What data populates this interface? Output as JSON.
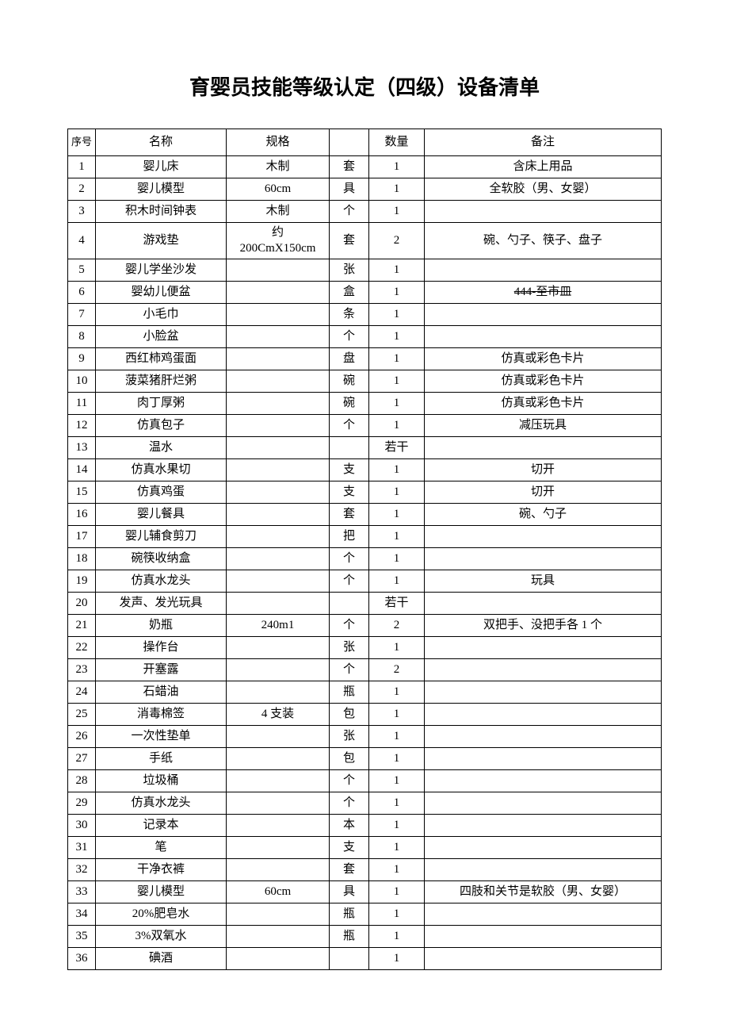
{
  "title": "育婴员技能等级认定（四级）设备清单",
  "headers": {
    "seq": "序号",
    "name": "名称",
    "spec": "规格",
    "unit": "",
    "qty": "数量",
    "remark": "备注"
  },
  "rows": [
    {
      "seq": "1",
      "name": "婴儿床",
      "spec": "木制",
      "unit": "套",
      "qty": "1",
      "remark": "含床上用品"
    },
    {
      "seq": "2",
      "name": "婴儿模型",
      "spec": "60cm",
      "unit": "具",
      "qty": "1",
      "remark": "全软胶（男、女婴）"
    },
    {
      "seq": "3",
      "name": "积木时间钟表",
      "spec": "木制",
      "unit": "个",
      "qty": "1",
      "remark": ""
    },
    {
      "seq": "4",
      "name": "游戏垫",
      "spec": "约\n200CmX150cm",
      "unit": "套",
      "qty": "2",
      "remark": "碗、勺子、筷子、盘子"
    },
    {
      "seq": "5",
      "name": "婴儿学坐沙发",
      "spec": "",
      "unit": "张",
      "qty": "1",
      "remark": ""
    },
    {
      "seq": "6",
      "name": "婴幼儿便盆",
      "spec": "",
      "unit": "盒",
      "qty": "1",
      "remark": "444-至市皿",
      "strike": true
    },
    {
      "seq": "7",
      "name": "小毛巾",
      "spec": "",
      "unit": "条",
      "qty": "1",
      "remark": ""
    },
    {
      "seq": "8",
      "name": "小脸盆",
      "spec": "",
      "unit": "个",
      "qty": "1",
      "remark": ""
    },
    {
      "seq": "9",
      "name": "西红柿鸡蛋面",
      "spec": "",
      "unit": "盘",
      "qty": "1",
      "remark": "仿真或彩色卡片"
    },
    {
      "seq": "10",
      "name": "菠菜猪肝烂粥",
      "spec": "",
      "unit": "碗",
      "qty": "1",
      "remark": "仿真或彩色卡片"
    },
    {
      "seq": "11",
      "name": "肉丁厚粥",
      "spec": "",
      "unit": "碗",
      "qty": "1",
      "remark": "仿真或彩色卡片"
    },
    {
      "seq": "12",
      "name": "仿真包子",
      "spec": "",
      "unit": "个",
      "qty": "1",
      "remark": "减压玩具"
    },
    {
      "seq": "13",
      "name": "温水",
      "spec": "",
      "unit": "",
      "qty": "若干",
      "remark": ""
    },
    {
      "seq": "14",
      "name": "仿真水果切",
      "spec": "",
      "unit": "支",
      "qty": "1",
      "remark": "切开"
    },
    {
      "seq": "15",
      "name": "仿真鸡蛋",
      "spec": "",
      "unit": "支",
      "qty": "1",
      "remark": "切开"
    },
    {
      "seq": "16",
      "name": "婴儿餐具",
      "spec": "",
      "unit": "套",
      "qty": "1",
      "remark": "碗、勺子"
    },
    {
      "seq": "17",
      "name": "婴儿辅食剪刀",
      "spec": "",
      "unit": "把",
      "qty": "1",
      "remark": ""
    },
    {
      "seq": "18",
      "name": "碗筷收纳盒",
      "spec": "",
      "unit": "个",
      "qty": "1",
      "remark": ""
    },
    {
      "seq": "19",
      "name": "仿真水龙头",
      "spec": "",
      "unit": "个",
      "qty": "1",
      "remark": "玩具"
    },
    {
      "seq": "20",
      "name": "发声、发光玩具",
      "spec": "",
      "unit": "",
      "qty": "若干",
      "remark": ""
    },
    {
      "seq": "21",
      "name": "奶瓶",
      "spec": "240m1",
      "unit": "个",
      "qty": "2",
      "remark": "双把手、没把手各 1 个"
    },
    {
      "seq": "22",
      "name": "操作台",
      "spec": "",
      "unit": "张",
      "qty": "1",
      "remark": ""
    },
    {
      "seq": "23",
      "name": "开塞露",
      "spec": "",
      "unit": "个",
      "qty": "2",
      "remark": ""
    },
    {
      "seq": "24",
      "name": "石蜡油",
      "spec": "",
      "unit": "瓶",
      "qty": "1",
      "remark": ""
    },
    {
      "seq": "25",
      "name": "消毒棉签",
      "spec": "4 支装",
      "unit": "包",
      "qty": "1",
      "remark": ""
    },
    {
      "seq": "26",
      "name": "一次性垫单",
      "spec": "",
      "unit": "张",
      "qty": "1",
      "remark": ""
    },
    {
      "seq": "27",
      "name": "手纸",
      "spec": "",
      "unit": "包",
      "qty": "1",
      "remark": ""
    },
    {
      "seq": "28",
      "name": "垃圾桶",
      "spec": "",
      "unit": "个",
      "qty": "1",
      "remark": ""
    },
    {
      "seq": "29",
      "name": "仿真水龙头",
      "spec": "",
      "unit": "个",
      "qty": "1",
      "remark": ""
    },
    {
      "seq": "30",
      "name": "记录本",
      "spec": "",
      "unit": "本",
      "qty": "1",
      "remark": ""
    },
    {
      "seq": "31",
      "name": "笔",
      "spec": "",
      "unit": "支",
      "qty": "1",
      "remark": ""
    },
    {
      "seq": "32",
      "name": "干净衣裤",
      "spec": "",
      "unit": "套",
      "qty": "1",
      "remark": ""
    },
    {
      "seq": "33",
      "name": "婴儿模型",
      "spec": "60cm",
      "unit": "具",
      "qty": "1",
      "remark": "四肢和关节是软胶（男、女婴）"
    },
    {
      "seq": "34",
      "name": "20%肥皂水",
      "spec": "",
      "unit": "瓶",
      "qty": "1",
      "remark": ""
    },
    {
      "seq": "35",
      "name": "3%双氧水",
      "spec": "",
      "unit": "瓶",
      "qty": "1",
      "remark": ""
    },
    {
      "seq": "36",
      "name": "碘酒",
      "spec": "",
      "unit": "",
      "qty": "1",
      "remark": ""
    }
  ]
}
